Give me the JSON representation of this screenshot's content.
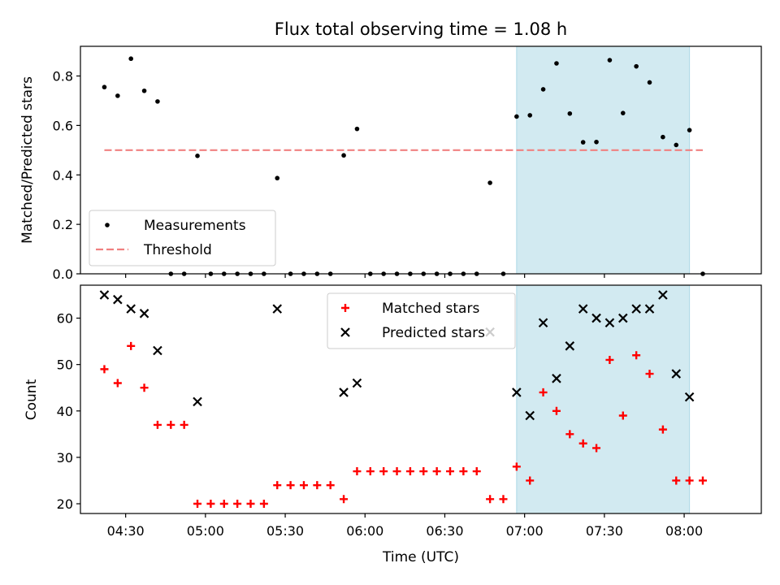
{
  "chart_data": [
    {
      "type": "scatter",
      "title": "Flux total observing time = 1.08 h",
      "xlabel": "",
      "ylabel": "Matched/Predicted stars",
      "ylim": [
        0,
        0.92
      ],
      "xlim": [
        "04:13",
        "08:29"
      ],
      "highlight_span": [
        "06:57",
        "08:02"
      ],
      "highlight_color": "#add8e6",
      "x_ticks": [
        "04:30",
        "05:00",
        "05:30",
        "06:00",
        "06:30",
        "07:00",
        "07:30",
        "08:00"
      ],
      "y_ticks": [
        0.0,
        0.2,
        0.4,
        0.6,
        0.8
      ],
      "y_tick_labels": [
        "0.0",
        "0.2",
        "0.4",
        "0.6",
        "0.8"
      ],
      "grid": false,
      "legend_position": "lower-left",
      "series": [
        {
          "name": "Measurements",
          "kind": "points",
          "color": "#000000",
          "x": [
            "04:22",
            "04:27",
            "04:32",
            "04:37",
            "04:42",
            "04:47",
            "04:52",
            "04:57",
            "05:02",
            "05:07",
            "05:12",
            "05:17",
            "05:22",
            "05:27",
            "05:32",
            "05:37",
            "05:42",
            "05:47",
            "05:52",
            "05:57",
            "06:02",
            "06:07",
            "06:12",
            "06:17",
            "06:22",
            "06:27",
            "06:32",
            "06:37",
            "06:42",
            "06:47",
            "06:52",
            "06:57",
            "07:02",
            "07:07",
            "07:12",
            "07:17",
            "07:22",
            "07:27",
            "07:32",
            "07:37",
            "07:42",
            "07:47",
            "07:52",
            "07:57",
            "08:02",
            "08:07"
          ],
          "y": [
            0.755,
            0.72,
            0.87,
            0.74,
            0.697,
            0.0,
            0.0,
            0.477,
            0.0,
            0.0,
            0.0,
            0.0,
            0.0,
            0.387,
            0.0,
            0.0,
            0.0,
            0.0,
            0.479,
            0.586,
            0.0,
            0.0,
            0.0,
            0.0,
            0.0,
            0.0,
            0.0,
            0.0,
            0.0,
            0.368,
            0.0,
            0.636,
            0.641,
            0.746,
            0.851,
            0.648,
            0.532,
            0.533,
            0.864,
            0.65,
            0.839,
            0.774,
            0.553,
            0.521,
            0.581,
            0.0
          ]
        },
        {
          "name": "Threshold",
          "kind": "dashed-line",
          "color": "#f08080",
          "x": [
            "04:22",
            "08:07"
          ],
          "y": [
            0.5,
            0.5
          ]
        }
      ]
    },
    {
      "type": "scatter",
      "title": "",
      "xlabel": "Time (UTC)",
      "ylabel": "Count",
      "ylim": [
        17.9,
        67.1
      ],
      "xlim": [
        "04:13",
        "08:29"
      ],
      "highlight_span": [
        "06:57",
        "08:02"
      ],
      "highlight_color": "#add8e6",
      "x_ticks": [
        "04:30",
        "05:00",
        "05:30",
        "06:00",
        "06:30",
        "07:00",
        "07:30",
        "08:00"
      ],
      "y_ticks": [
        20,
        30,
        40,
        50,
        60
      ],
      "y_tick_labels": [
        "20",
        "30",
        "40",
        "50",
        "60"
      ],
      "grid": false,
      "legend_position": "upper-center",
      "series": [
        {
          "name": "Matched stars",
          "kind": "plus",
          "color": "#ff0000",
          "x": [
            "04:22",
            "04:27",
            "04:32",
            "04:37",
            "04:42",
            "04:47",
            "04:52",
            "04:57",
            "05:02",
            "05:07",
            "05:12",
            "05:17",
            "05:22",
            "05:27",
            "05:32",
            "05:37",
            "05:42",
            "05:47",
            "05:52",
            "05:57",
            "06:02",
            "06:07",
            "06:12",
            "06:17",
            "06:22",
            "06:27",
            "06:32",
            "06:37",
            "06:42",
            "06:47",
            "06:52",
            "06:57",
            "07:02",
            "07:07",
            "07:12",
            "07:17",
            "07:22",
            "07:27",
            "07:32",
            "07:37",
            "07:42",
            "07:47",
            "07:52",
            "07:57",
            "08:02",
            "08:07"
          ],
          "y": [
            49,
            46,
            54,
            45,
            37,
            37,
            37,
            20,
            20,
            20,
            20,
            20,
            20,
            24,
            24,
            24,
            24,
            24,
            21,
            27,
            27,
            27,
            27,
            27,
            27,
            27,
            27,
            27,
            27,
            21,
            21,
            28,
            25,
            44,
            40,
            35,
            33,
            32,
            51,
            39,
            52,
            48,
            36,
            25,
            25,
            25
          ]
        },
        {
          "name": "Predicted stars",
          "kind": "cross",
          "color": "#000000",
          "x": [
            "04:22",
            "04:27",
            "04:32",
            "04:37",
            "04:42",
            "04:57",
            "05:27",
            "05:52",
            "05:57",
            "06:47",
            "06:57",
            "07:02",
            "07:07",
            "07:12",
            "07:17",
            "07:22",
            "07:27",
            "07:32",
            "07:37",
            "07:42",
            "07:47",
            "07:52",
            "07:57",
            "08:02"
          ],
          "y": [
            65,
            64,
            62,
            61,
            53,
            42,
            62,
            44,
            46,
            57,
            44,
            39,
            59,
            47,
            54,
            62,
            60,
            59,
            60,
            62,
            62,
            65,
            48,
            43
          ]
        }
      ]
    }
  ]
}
